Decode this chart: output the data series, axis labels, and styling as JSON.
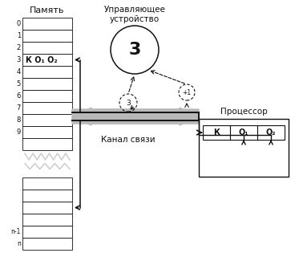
{
  "mem_label": "Память",
  "cu_label": "Управляющее\nустройство",
  "proc_label": "Процессор",
  "channel_label": "Канал связи",
  "cmd_text": "К О₁ О₂",
  "proc_cells": [
    "К",
    "О₁",
    "О₂"
  ],
  "cu_number": "3",
  "small_circle_num": "3",
  "plus1_label": "+1",
  "bg_color": "#ffffff",
  "gray": "#b8b8b8",
  "black": "#111111"
}
